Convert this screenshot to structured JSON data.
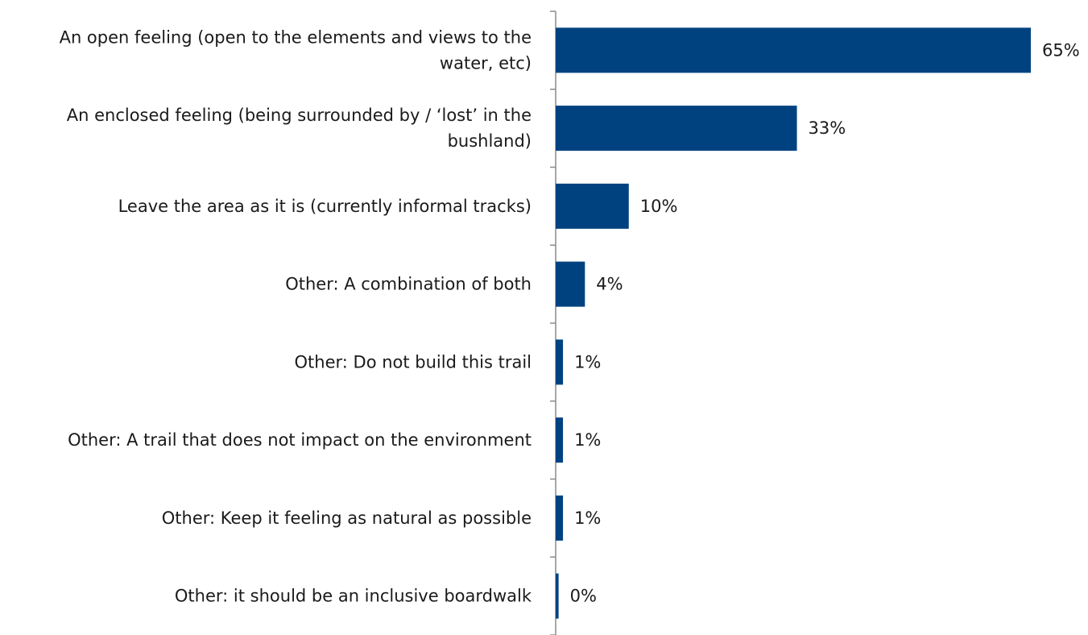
{
  "chart_data": {
    "type": "bar",
    "orientation": "horizontal",
    "categories": [
      [
        "An open feeling (open to the elements and views to the",
        "water, etc)"
      ],
      [
        "An enclosed feeling (being surrounded by / ‘lost’ in the",
        "bushland)"
      ],
      [
        "Leave the area as it is (currently informal tracks)"
      ],
      [
        "Other: A combination of both"
      ],
      [
        "Other: Do not build this trail"
      ],
      [
        "Other: A trail that does not impact on the environment"
      ],
      [
        "Other: Keep it feeling as natural as possible"
      ],
      [
        "Other: it should be an inclusive boardwalk"
      ]
    ],
    "values": [
      65,
      33,
      10,
      4,
      1,
      1,
      1,
      0.4
    ],
    "value_labels": [
      "65%",
      "33%",
      "10%",
      "4%",
      "1%",
      "1%",
      "1%",
      "0%"
    ],
    "xlim": [
      0,
      65
    ],
    "bar_color": "#004280",
    "axis_color": "#8c8c8c",
    "grid": false,
    "legend": "none",
    "title": "",
    "xlabel": "",
    "ylabel": ""
  }
}
